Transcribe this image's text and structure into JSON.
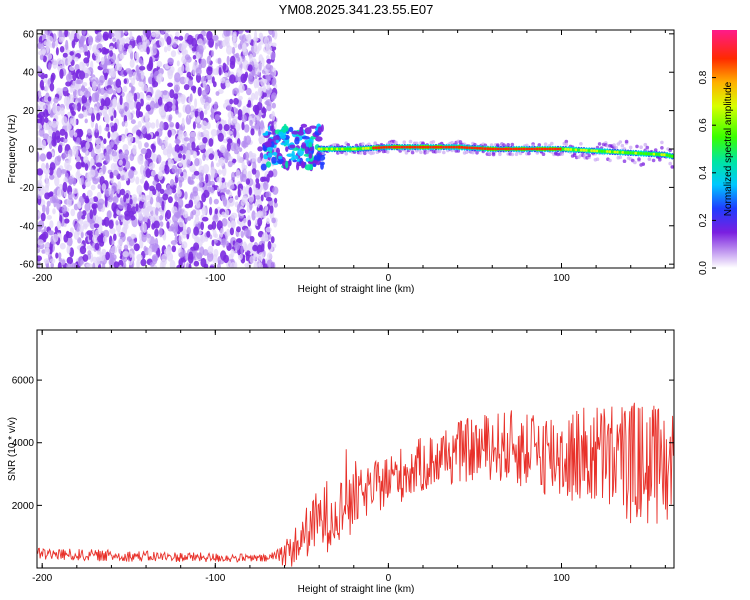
{
  "title": "YM08.2025.341.23.55.E07",
  "colors": {
    "line": "#e8312a",
    "axis": "#000000",
    "dot_purple": "#7b2be0",
    "dot_light": "#d9c8f5"
  },
  "chart_data": [
    {
      "type": "heatmap",
      "name": "spectrogram",
      "xlabel": "Height of straight line (km)",
      "ylabel": "Frequency (Hz)",
      "xlim": [
        -203,
        165
      ],
      "ylim": [
        -62,
        62
      ],
      "xticks": [
        -200,
        -100,
        0,
        100
      ],
      "yticks": [
        -60,
        -40,
        -20,
        0,
        20,
        40,
        60
      ],
      "tick_labels_x": [
        "-200",
        "-100",
        "0",
        "100"
      ],
      "tick_labels_y": [
        "-60",
        "-40",
        "-20",
        "0",
        "20",
        "40",
        "60"
      ],
      "noise_region_x": [
        -203,
        -65
      ],
      "transition_region_x": [
        -72,
        -38
      ],
      "signal": {
        "x": [
          -40,
          -20,
          0,
          20,
          40,
          60,
          80,
          100,
          120,
          140,
          160,
          165
        ],
        "freq_hz": [
          0,
          0,
          1,
          1,
          1,
          0,
          0,
          0,
          -1,
          -2,
          -3,
          -4
        ]
      },
      "colorbar": {
        "label": "Normalized spectral amplitude",
        "range": [
          0,
          1
        ],
        "ticks": [
          0.0,
          0.2,
          0.4,
          0.6,
          0.8
        ],
        "tick_labels": [
          "0.0",
          "0.2",
          "0.4",
          "0.6",
          "0.8"
        ]
      }
    },
    {
      "type": "line",
      "name": "snr",
      "xlabel": "Height of straight line (km)",
      "ylabel": "SNR (10 * v/v)",
      "xlim": [
        -203,
        165
      ],
      "ylim": [
        0,
        7600
      ],
      "xticks": [
        -200,
        -100,
        0,
        100
      ],
      "yticks": [
        2000,
        4000,
        6000
      ],
      "tick_labels_x": [
        "-200",
        "-100",
        "0",
        "100"
      ],
      "tick_labels_y": [
        "2000",
        "4000",
        "6000"
      ],
      "envelope": {
        "x": [
          -203,
          -150,
          -100,
          -70,
          -55,
          -45,
          -35,
          -25,
          -10,
          0,
          20,
          40,
          60,
          80,
          100,
          120,
          140,
          165
        ],
        "baseline": [
          450,
          380,
          330,
          300,
          600,
          1300,
          1700,
          2000,
          2500,
          2800,
          3300,
          3700,
          3900,
          3800,
          3600,
          3600,
          3400,
          3200
        ],
        "amplitude": [
          200,
          180,
          150,
          120,
          600,
          900,
          1200,
          900,
          800,
          900,
          900,
          1000,
          1100,
          1300,
          1500,
          1700,
          2000,
          2000
        ]
      }
    }
  ]
}
